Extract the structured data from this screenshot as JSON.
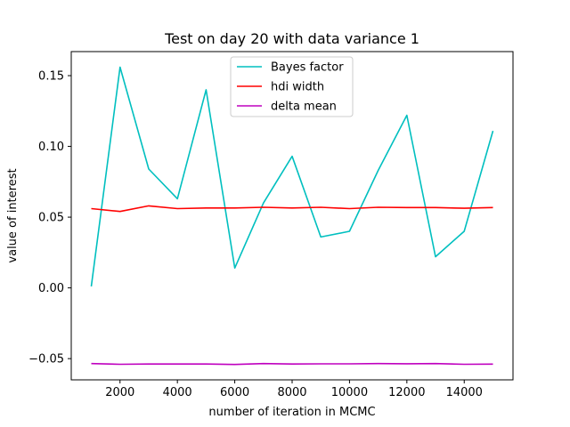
{
  "chart_data": {
    "type": "line",
    "title": "Test on day 20 with data variance 1",
    "xlabel": "number of iteration in MCMC",
    "ylabel": "value of interest",
    "x": [
      1000,
      2000,
      3000,
      4000,
      5000,
      6000,
      7000,
      8000,
      9000,
      10000,
      11000,
      12000,
      13000,
      14000,
      15000
    ],
    "xlim": [
      300,
      15700
    ],
    "ylim": [
      -0.065,
      0.167
    ],
    "xticks": [
      2000,
      4000,
      6000,
      8000,
      10000,
      12000,
      14000
    ],
    "xtick_labels": [
      "2000",
      "4000",
      "6000",
      "8000",
      "10000",
      "12000",
      "14000"
    ],
    "yticks": [
      -0.05,
      0.0,
      0.05,
      0.1,
      0.15
    ],
    "ytick_labels": [
      "−0.05",
      "0.00",
      "0.05",
      "0.10",
      "0.15"
    ],
    "grid": false,
    "legend_position": "top-center",
    "series": [
      {
        "name": "Bayes factor",
        "color": "#00bfbf",
        "values": [
          0.001,
          0.156,
          0.084,
          0.063,
          0.14,
          0.014,
          0.06,
          0.093,
          0.036,
          0.04,
          0.083,
          0.122,
          0.022,
          0.04,
          0.111
        ]
      },
      {
        "name": "hdi width",
        "color": "#ff0000",
        "values": [
          0.056,
          0.054,
          0.058,
          0.056,
          0.0565,
          0.0565,
          0.057,
          0.0565,
          0.057,
          0.056,
          0.057,
          0.0568,
          0.0568,
          0.0563,
          0.0568
        ]
      },
      {
        "name": "delta mean",
        "color": "#bf00bf",
        "values": [
          -0.0535,
          -0.054,
          -0.0538,
          -0.0538,
          -0.0538,
          -0.0541,
          -0.0535,
          -0.0538,
          -0.0537,
          -0.0537,
          -0.0535,
          -0.0536,
          -0.0535,
          -0.054,
          -0.0539
        ]
      }
    ]
  }
}
